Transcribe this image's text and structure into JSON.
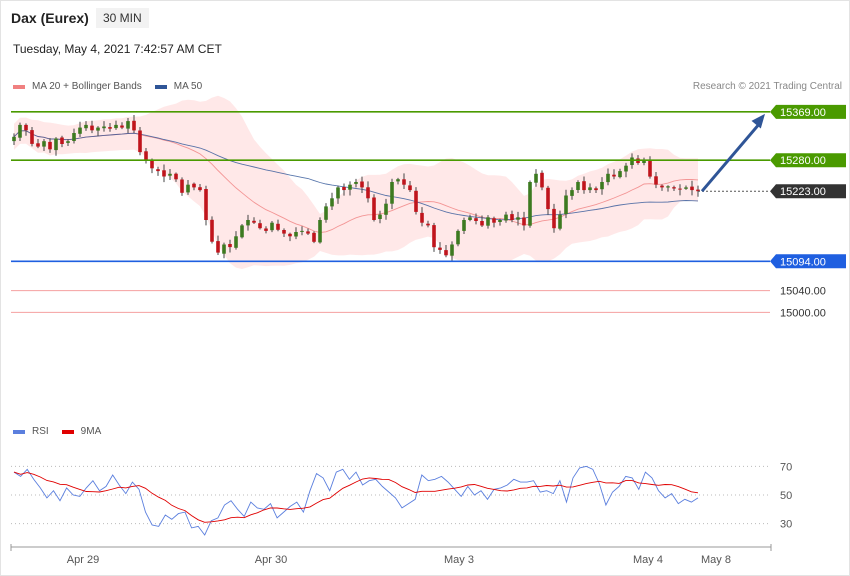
{
  "header": {
    "title": "Dax (Eurex)",
    "timeframe": "30 MIN",
    "datetime": "Tuesday, May 4, 2021 7:42:57 AM CET"
  },
  "legend": {
    "ma20_bb": "MA 20 + Bollinger Bands",
    "ma50": "MA 50",
    "ma20_color": "#f08080",
    "ma50_color": "#2f5597"
  },
  "credit": "Research © 2021 Trading Central",
  "rsi_legend": {
    "rsi": "RSI",
    "ma9": "9MA",
    "rsi_color": "#5b7fde",
    "ma9_color": "#e00000"
  },
  "chart_data": [
    {
      "type": "candlestick",
      "ylim": [
        14940,
        15400
      ],
      "x_labels": [
        "Apr 29",
        "Apr 30",
        "May 3",
        "May 4",
        "May 8"
      ],
      "levels": [
        {
          "label": "15369.00",
          "value": 15369,
          "color": "#4a9a00",
          "kind": "resistance"
        },
        {
          "label": "15280.00",
          "value": 15280,
          "color": "#4a9a00",
          "kind": "resistance"
        },
        {
          "label": "15223.00",
          "value": 15223,
          "color": "#333333",
          "kind": "last"
        },
        {
          "label": "15094.00",
          "value": 15094,
          "color": "#1f5fe0",
          "kind": "support"
        },
        {
          "label": "15040.00",
          "value": 15040,
          "color": "#e03030",
          "kind": "target"
        },
        {
          "label": "15000.00",
          "value": 15000,
          "color": "#e03030",
          "kind": "target"
        }
      ],
      "arrow": {
        "from": 15223,
        "to": 15369,
        "color": "#2f5597"
      },
      "closes": [
        15323,
        15345,
        15335,
        15310,
        15305,
        15315,
        15300,
        15320,
        15310,
        15315,
        15330,
        15340,
        15345,
        15335,
        15340,
        15342,
        15338,
        15345,
        15340,
        15352,
        15335,
        15295,
        15280,
        15265,
        15260,
        15250,
        15255,
        15245,
        15220,
        15235,
        15230,
        15225,
        15170,
        15130,
        15110,
        15125,
        15120,
        15140,
        15160,
        15170,
        15165,
        15155,
        15150,
        15165,
        15152,
        15145,
        15140,
        15148,
        15150,
        15145,
        15130,
        15170,
        15195,
        15210,
        15230,
        15225,
        15235,
        15240,
        15230,
        15210,
        15170,
        15180,
        15200,
        15240,
        15245,
        15235,
        15225,
        15185,
        15165,
        15160,
        15120,
        15115,
        15105,
        15125,
        15150,
        15170,
        15175,
        15168,
        15160,
        15175,
        15165,
        15170,
        15180,
        15170,
        15175,
        15160,
        15240,
        15255,
        15230,
        15190,
        15155,
        15180,
        15215,
        15225,
        15240,
        15225,
        15230,
        15225,
        15240,
        15255,
        15250,
        15260,
        15270,
        15285,
        15275,
        15280,
        15250,
        15235,
        15230,
        15232,
        15228,
        15226,
        15230,
        15225,
        15223
      ],
      "rsi": {
        "levels": [
          70,
          50,
          30
        ],
        "ylim": [
          15,
          85
        ],
        "values": [
          66,
          63,
          68,
          61,
          55,
          48,
          53,
          46,
          55,
          50,
          49,
          55,
          60,
          53,
          56,
          64,
          57,
          51,
          59,
          54,
          38,
          29,
          28,
          36,
          33,
          37,
          38,
          27,
          28,
          22,
          32,
          34,
          43,
          46,
          40,
          35,
          45,
          41,
          40,
          44,
          34,
          38,
          42,
          45,
          38,
          53,
          65,
          62,
          53,
          66,
          68,
          61,
          66,
          57,
          60,
          61,
          56,
          52,
          48,
          41,
          44,
          47,
          64,
          60,
          61,
          63,
          59,
          54,
          49,
          56,
          50,
          53,
          47,
          54,
          55,
          57,
          61,
          59,
          59,
          60,
          52,
          53,
          51,
          60,
          45,
          62,
          69,
          70,
          68,
          58,
          43,
          52,
          56,
          63,
          62,
          54,
          66,
          62,
          53,
          48,
          51,
          44,
          47,
          45,
          48
        ]
      }
    }
  ]
}
